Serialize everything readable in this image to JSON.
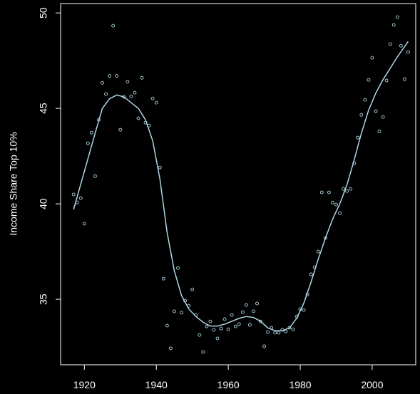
{
  "chart_data": {
    "type": "scatter",
    "y_label": "Income Share Top 10%",
    "color": "#add8e6",
    "line_color": "#add8e6",
    "x": [
      1917,
      1918,
      1919,
      1920,
      1921,
      1922,
      1923,
      1924,
      1925,
      1926,
      1927,
      1928,
      1929,
      1930,
      1931,
      1932,
      1933,
      1934,
      1935,
      1936,
      1937,
      1938,
      1939,
      1940,
      1941,
      1942,
      1943,
      1944,
      1945,
      1946,
      1947,
      1948,
      1949,
      1950,
      1951,
      1952,
      1953,
      1954,
      1955,
      1956,
      1957,
      1958,
      1959,
      1960,
      1961,
      1962,
      1963,
      1964,
      1965,
      1966,
      1967,
      1968,
      1969,
      1970,
      1971,
      1972,
      1973,
      1974,
      1975,
      1976,
      1977,
      1978,
      1979,
      1980,
      1981,
      1982,
      1983,
      1984,
      1985,
      1986,
      1987,
      1988,
      1989,
      1990,
      1991,
      1992,
      1993,
      1994,
      1995,
      1996,
      1997,
      1998,
      1999,
      2000,
      2001,
      2002,
      2003,
      2004,
      2005,
      2006,
      2007,
      2008,
      2009,
      2010
    ],
    "values": [
      40.49,
      40.07,
      40.3,
      38.96,
      43.17,
      43.73,
      41.45,
      44.4,
      46.34,
      45.75,
      46.7,
      49.33,
      46.7,
      43.88,
      45.6,
      46.4,
      45.63,
      45.82,
      44.48,
      46.6,
      44.25,
      44.1,
      45.52,
      45.3,
      41.9,
      36.08,
      33.62,
      32.43,
      34.37,
      36.64,
      34.3,
      34.93,
      34.66,
      35.52,
      34.18,
      33.13,
      32.24,
      33.58,
      33.84,
      33.4,
      32.95,
      33.47,
      33.96,
      33.43,
      34.18,
      33.58,
      33.7,
      34.33,
      34.7,
      33.66,
      34.37,
      34.78,
      33.84,
      32.54,
      33.28,
      33.51,
      33.25,
      33.25,
      33.4,
      33.32,
      33.51,
      33.43,
      34.1,
      34.48,
      34.44,
      35.26,
      36.31,
      36.68,
      37.5,
      40.6,
      38.21,
      40.6,
      40.07,
      39.96,
      39.51,
      40.78,
      40.67,
      40.78,
      42.13,
      43.47,
      44.66,
      45.45,
      46.49,
      47.65,
      44.85,
      43.8,
      44.55,
      46.46,
      48.36,
      49.37,
      49.78,
      48.28,
      46.53,
      47.95
    ],
    "line": {
      "x": [
        1917,
        1920,
        1923,
        1925,
        1927,
        1929,
        1931,
        1933,
        1935,
        1937,
        1939,
        1941,
        1943,
        1945,
        1947,
        1949,
        1951,
        1953,
        1955,
        1957,
        1959,
        1961,
        1963,
        1965,
        1967,
        1969,
        1971,
        1973,
        1975,
        1977,
        1979,
        1981,
        1983,
        1985,
        1987,
        1989,
        1991,
        1993,
        1995,
        1997,
        1999,
        2001,
        2003,
        2005,
        2007,
        2010
      ],
      "values": [
        39.7,
        41.7,
        43.7,
        45.0,
        45.5,
        45.7,
        45.6,
        45.3,
        45.0,
        44.4,
        43.3,
        41.3,
        38.5,
        36.5,
        35.2,
        34.5,
        34.1,
        33.8,
        33.6,
        33.6,
        33.7,
        33.85,
        34.0,
        34.1,
        34.05,
        33.85,
        33.5,
        33.35,
        33.35,
        33.5,
        34.0,
        34.8,
        35.9,
        37.1,
        38.2,
        39.2,
        40.0,
        41.0,
        42.3,
        43.7,
        44.9,
        45.8,
        46.5,
        47.1,
        47.7,
        48.5
      ]
    },
    "xlim": [
      1913.4,
      2012.1
    ],
    "ylim": [
      31.57,
      50.49
    ],
    "xticks": [
      1920,
      1940,
      1960,
      1980,
      2000
    ],
    "yticks": [
      35,
      40,
      45,
      50
    ]
  }
}
